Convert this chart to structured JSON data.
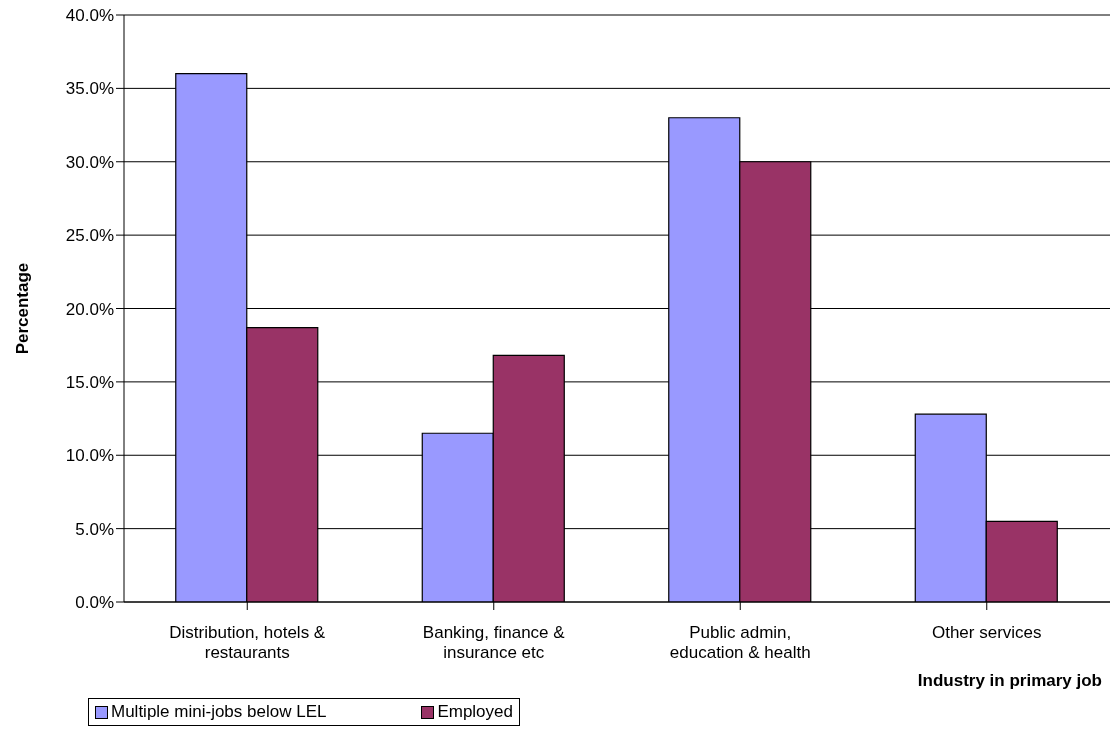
{
  "chart_data": {
    "type": "bar",
    "xlabel": "Industry in primary job",
    "ylabel": "Percentage",
    "categories": [
      "Distribution, hotels & restaurants",
      "Banking, finance & insurance etc",
      "Public admin, education & health",
      "Other services"
    ],
    "series": [
      {
        "name": "Multiple mini-jobs below LEL",
        "color": "#9999ff",
        "values": [
          36.0,
          11.5,
          33.0,
          12.8
        ]
      },
      {
        "name": "Employed",
        "color": "#993366",
        "values": [
          18.7,
          16.8,
          30.0,
          5.5
        ]
      }
    ],
    "ylim": [
      0,
      40
    ],
    "yticks": [
      {
        "value": 0,
        "label": "0.0%"
      },
      {
        "value": 5,
        "label": "5.0%"
      },
      {
        "value": 10,
        "label": "10.0%"
      },
      {
        "value": 15,
        "label": "15.0%"
      },
      {
        "value": 20,
        "label": "20.0%"
      },
      {
        "value": 25,
        "label": "25.0%"
      },
      {
        "value": 30,
        "label": "30.0%"
      },
      {
        "value": 35,
        "label": "35.0%"
      },
      {
        "value": 40,
        "label": "40.0%"
      }
    ],
    "grid": "y",
    "legend": "bottom left"
  }
}
